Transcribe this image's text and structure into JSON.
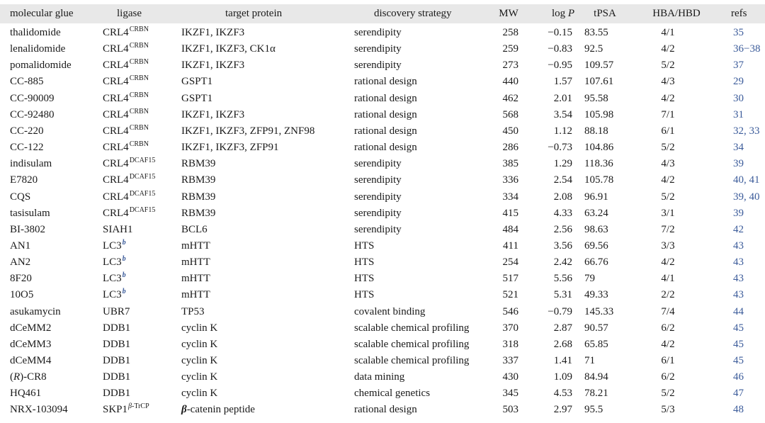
{
  "table": {
    "headers": {
      "glue": "molecular glue",
      "ligase": "ligase",
      "target": "target protein",
      "strategy": "discovery strategy",
      "mw": "MW",
      "logp_prefix": "log ",
      "logp_var": "P",
      "tpsa": "tPSA",
      "hba_hbd": "HBA/HBD",
      "refs": "refs"
    },
    "accent_color": "#3b5b9a",
    "header_bg": "#e8e8e8",
    "rows": [
      {
        "glue": "thalidomide",
        "ligase": "CRL4",
        "ligase_sup": "CRBN",
        "target": "IKZF1, IKZF3",
        "strategy": "serendipity",
        "mw": "258",
        "logp": "−0.15",
        "tpsa": "83.55",
        "hb": "4/1",
        "refs": "35"
      },
      {
        "glue": "lenalidomide",
        "ligase": "CRL4",
        "ligase_sup": "CRBN",
        "target": "IKZF1, IKZF3, CK1α",
        "strategy": "serendipity",
        "mw": "259",
        "logp": "−0.83",
        "tpsa": "92.5",
        "hb": "4/2",
        "refs": "36−38"
      },
      {
        "glue": "pomalidomide",
        "ligase": "CRL4",
        "ligase_sup": "CRBN",
        "target": "IKZF1, IKZF3",
        "strategy": "serendipity",
        "mw": "273",
        "logp": "−0.95",
        "tpsa": "109.57",
        "hb": "5/2",
        "refs": "37"
      },
      {
        "glue": "CC-885",
        "ligase": "CRL4",
        "ligase_sup": "CRBN",
        "target": "GSPT1",
        "strategy": "rational design",
        "mw": "440",
        "logp": "1.57",
        "tpsa": "107.61",
        "hb": "4/3",
        "refs": "29"
      },
      {
        "glue": "CC-90009",
        "ligase": "CRL4",
        "ligase_sup": "CRBN",
        "target": "GSPT1",
        "strategy": "rational design",
        "mw": "462",
        "logp": "2.01",
        "tpsa": "95.58",
        "hb": "4/2",
        "refs": "30"
      },
      {
        "glue": "CC-92480",
        "ligase": "CRL4",
        "ligase_sup": "CRBN",
        "target": "IKZF1, IKZF3",
        "strategy": "rational design",
        "mw": "568",
        "logp": "3.54",
        "tpsa": "105.98",
        "hb": "7/1",
        "refs": "31"
      },
      {
        "glue": "CC-220",
        "ligase": "CRL4",
        "ligase_sup": "CRBN",
        "target": "IKZF1, IKZF3, ZFP91, ZNF98",
        "strategy": "rational design",
        "mw": "450",
        "logp": "1.12",
        "tpsa": "88.18",
        "hb": "6/1",
        "refs": "32, 33"
      },
      {
        "glue": "CC-122",
        "ligase": "CRL4",
        "ligase_sup": "CRBN",
        "target": "IKZF1, IKZF3, ZFP91",
        "strategy": "rational design",
        "mw": "286",
        "logp": "−0.73",
        "tpsa": "104.86",
        "hb": "5/2",
        "refs": "34"
      },
      {
        "glue": "indisulam",
        "ligase": "CRL4",
        "ligase_sup": "DCAF15",
        "target": "RBM39",
        "strategy": "serendipity",
        "mw": "385",
        "logp": "1.29",
        "tpsa": "118.36",
        "hb": "4/3",
        "refs": "39"
      },
      {
        "glue": "E7820",
        "ligase": "CRL4",
        "ligase_sup": "DCAF15",
        "target": "RBM39",
        "strategy": "serendipity",
        "mw": "336",
        "logp": "2.54",
        "tpsa": "105.78",
        "hb": "4/2",
        "refs": "40, 41"
      },
      {
        "glue": "CQS",
        "ligase": "CRL4",
        "ligase_sup": "DCAF15",
        "target": "RBM39",
        "strategy": "serendipity",
        "mw": "334",
        "logp": "2.08",
        "tpsa": "96.91",
        "hb": "5/2",
        "refs": "39, 40"
      },
      {
        "glue": "tasisulam",
        "ligase": "CRL4",
        "ligase_sup": "DCAF15",
        "target": "RBM39",
        "strategy": "serendipity",
        "mw": "415",
        "logp": "4.33",
        "tpsa": "63.24",
        "hb": "3/1",
        "refs": "39"
      },
      {
        "glue": "BI-3802",
        "ligase": "SIAH1",
        "ligase_sup": "",
        "target": "BCL6",
        "strategy": "serendipity",
        "mw": "484",
        "logp": "2.56",
        "tpsa": "98.63",
        "hb": "7/2",
        "refs": "42"
      },
      {
        "glue": "AN1",
        "ligase": "LC3",
        "ligase_note": "b",
        "target": "mHTT",
        "strategy": "HTS",
        "mw": "411",
        "logp": "3.56",
        "tpsa": "69.56",
        "hb": "3/3",
        "refs": "43"
      },
      {
        "glue": "AN2",
        "ligase": "LC3",
        "ligase_note": "b",
        "target": "mHTT",
        "strategy": "HTS",
        "mw": "254",
        "logp": "2.42",
        "tpsa": "66.76",
        "hb": "4/2",
        "refs": "43"
      },
      {
        "glue": "8F20",
        "ligase": "LC3",
        "ligase_note": "b",
        "target": "mHTT",
        "strategy": "HTS",
        "mw": "517",
        "logp": "5.56",
        "tpsa": "79",
        "hb": "4/1",
        "refs": "43"
      },
      {
        "glue": "10O5",
        "ligase": "LC3",
        "ligase_note": "b",
        "target": "mHTT",
        "strategy": "HTS",
        "mw": "521",
        "logp": "5.31",
        "tpsa": "49.33",
        "hb": "2/2",
        "refs": "43"
      },
      {
        "glue": "asukamycin",
        "ligase": "UBR7",
        "ligase_sup": "",
        "target": "TP53",
        "strategy": "covalent binding",
        "mw": "546",
        "logp": "−0.79",
        "tpsa": "145.33",
        "hb": "7/4",
        "refs": "44"
      },
      {
        "glue": "dCeMM2",
        "ligase": "DDB1",
        "ligase_sup": "",
        "target": "cyclin K",
        "strategy": "scalable chemical profiling",
        "mw": "370",
        "logp": "2.87",
        "tpsa": "90.57",
        "hb": "6/2",
        "refs": "45"
      },
      {
        "glue": "dCeMM3",
        "ligase": "DDB1",
        "ligase_sup": "",
        "target": "cyclin K",
        "strategy": "scalable chemical profiling",
        "mw": "318",
        "logp": "2.68",
        "tpsa": "65.85",
        "hb": "4/2",
        "refs": "45"
      },
      {
        "glue": "dCeMM4",
        "ligase": "DDB1",
        "ligase_sup": "",
        "target": "cyclin K",
        "strategy": "scalable chemical profiling",
        "mw": "337",
        "logp": "1.41",
        "tpsa": "71",
        "hb": "6/1",
        "refs": "45"
      },
      {
        "glue_prefix": "(",
        "glue_italic": "R",
        "glue": ")-CR8",
        "ligase": "DDB1",
        "ligase_sup": "",
        "target": "cyclin K",
        "strategy": "data mining",
        "mw": "430",
        "logp": "1.09",
        "tpsa": "84.94",
        "hb": "6/2",
        "refs": "46"
      },
      {
        "glue": "HQ461",
        "ligase": "DDB1",
        "ligase_sup": "",
        "target": "cyclin K",
        "strategy": "chemical genetics",
        "mw": "345",
        "logp": "4.53",
        "tpsa": "78.21",
        "hb": "5/2",
        "refs": "47"
      },
      {
        "glue": "NRX-103094",
        "ligase": "SKP1",
        "ligase_sup_italic": "β",
        "ligase_sup": "-TrCP",
        "target_italic": "β",
        "target": "-catenin peptide",
        "strategy": "rational design",
        "mw": "503",
        "logp": "2.97",
        "tpsa": "95.5",
        "hb": "5/3",
        "refs": "48"
      }
    ]
  }
}
